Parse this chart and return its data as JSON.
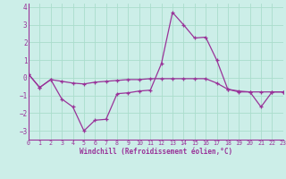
{
  "xlabel": "Windchill (Refroidissement éolien,°C)",
  "line1": {
    "x": [
      0,
      1,
      2,
      3,
      4,
      5,
      6,
      7,
      8,
      9,
      10,
      11,
      12,
      13,
      14,
      15,
      16,
      17,
      18,
      19,
      20,
      21,
      22,
      23
    ],
    "y": [
      0.2,
      -0.55,
      -0.1,
      -0.2,
      -0.3,
      -0.35,
      -0.25,
      -0.2,
      -0.15,
      -0.1,
      -0.1,
      -0.05,
      -0.05,
      -0.05,
      -0.05,
      -0.05,
      -0.05,
      -0.3,
      -0.65,
      -0.8,
      -0.8,
      -0.8,
      -0.8,
      -0.8
    ]
  },
  "line2": {
    "x": [
      0,
      1,
      2,
      3,
      4,
      5,
      6,
      7,
      8,
      9,
      10,
      11,
      12,
      13,
      14,
      15,
      16,
      17,
      18,
      19,
      20,
      21,
      22,
      23
    ],
    "y": [
      0.2,
      -0.55,
      -0.1,
      -1.2,
      -1.65,
      -3.0,
      -2.4,
      -2.35,
      -0.9,
      -0.85,
      -0.75,
      -0.7,
      0.8,
      3.7,
      3.0,
      2.25,
      2.3,
      1.0,
      -0.65,
      -0.75,
      -0.8,
      -1.65,
      -0.8,
      -0.8
    ]
  },
  "xlim": [
    0,
    23
  ],
  "ylim": [
    -3.5,
    4.2
  ],
  "yticks": [
    -3,
    -2,
    -1,
    0,
    1,
    2,
    3,
    4
  ],
  "xticks": [
    0,
    1,
    2,
    3,
    4,
    5,
    6,
    7,
    8,
    9,
    10,
    11,
    12,
    13,
    14,
    15,
    16,
    17,
    18,
    19,
    20,
    21,
    22,
    23
  ],
  "bg_color": "#cceee8",
  "grid_color": "#aaddcc",
  "line_color": "#993399",
  "marker": "+",
  "marker_size": 3.5,
  "linewidth": 0.9
}
